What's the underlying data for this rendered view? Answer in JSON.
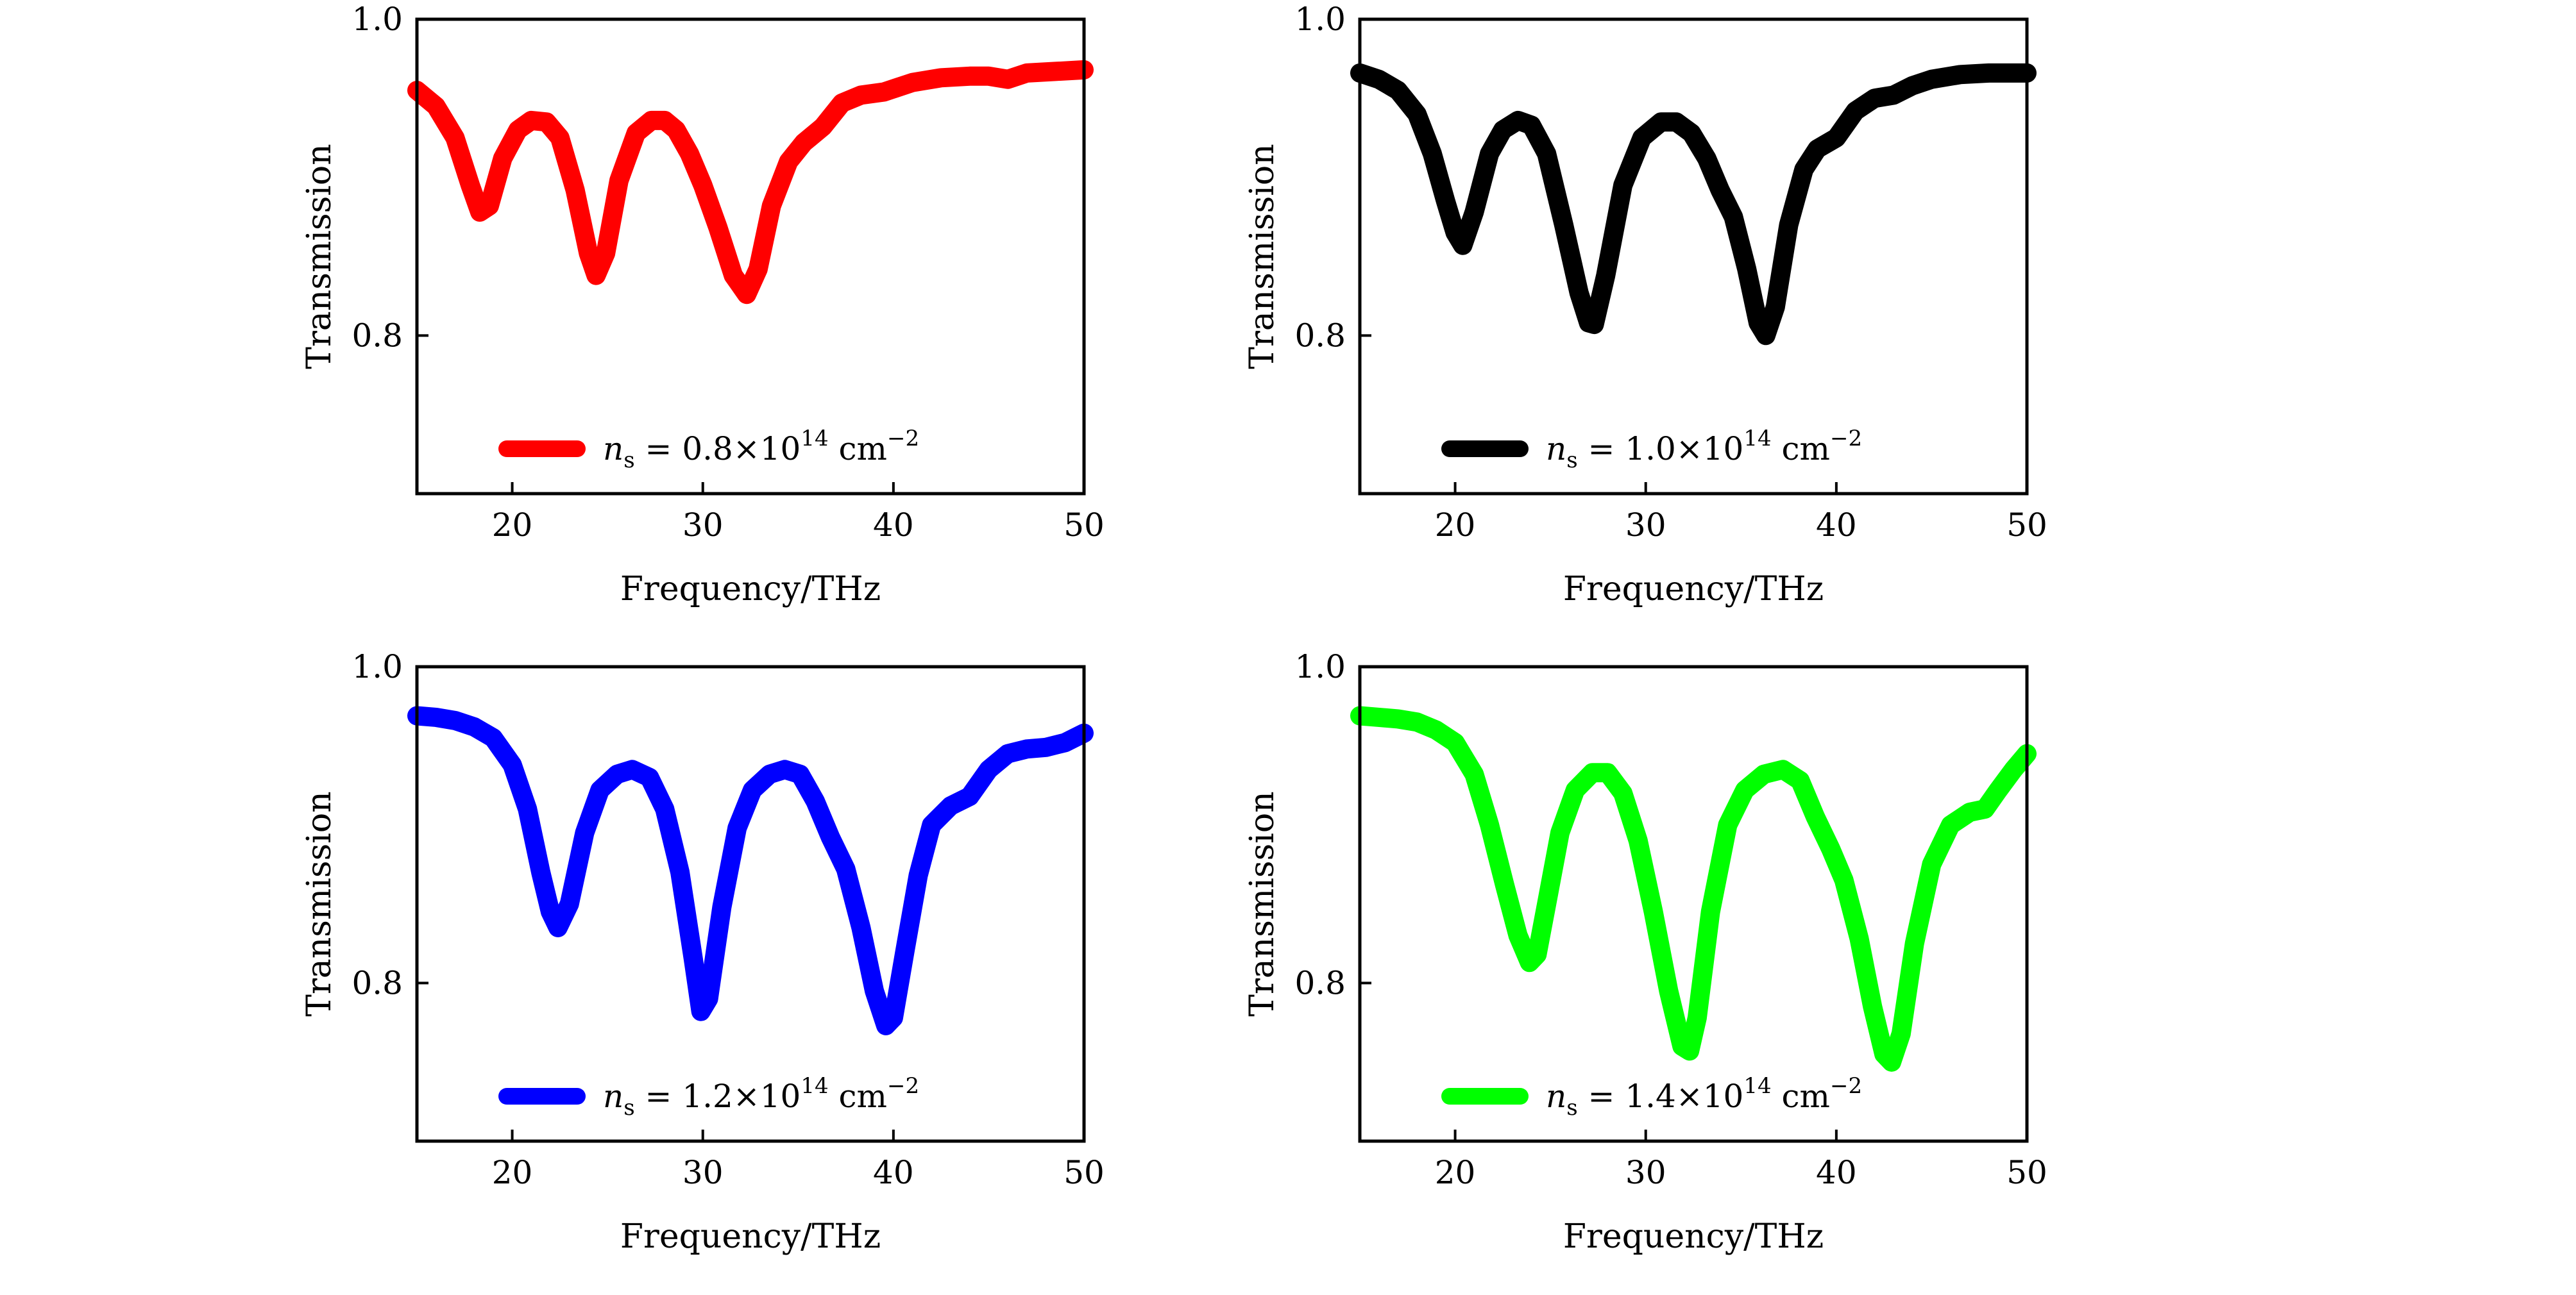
{
  "chart_data": [
    {
      "type": "line",
      "xlabel": "Frequency/THz",
      "ylabel": "Transmission",
      "xlim": [
        15,
        50
      ],
      "ylim": [
        0.7,
        1.0
      ],
      "xticks": [
        "20",
        "30",
        "40",
        "50"
      ],
      "yticks": [
        "0.8",
        "1.0"
      ],
      "legend_placement": "bottom-center",
      "series": [
        {
          "name": "n_s = 0.8×10^14 cm^-2",
          "legend": {
            "symbol": "n",
            "sub": "s",
            "eq": " = 0.8×10",
            "sup": "14",
            "unit": " cm",
            "unitsup": "−2"
          },
          "color": "#ff0000",
          "x": [
            15,
            16,
            17,
            17.8,
            18.3,
            18.8,
            19.5,
            20.3,
            21,
            21.8,
            22.5,
            23.3,
            24,
            24.4,
            24.9,
            25.6,
            26.5,
            27.3,
            28,
            28.6,
            29.3,
            30,
            30.8,
            31.6,
            32.3,
            32.9,
            33.6,
            34.5,
            35.3,
            36.3,
            37.3,
            38.3,
            39.5,
            41,
            42.5,
            44,
            45,
            46,
            47,
            48.5,
            50
          ],
          "y": [
            0.955,
            0.945,
            0.925,
            0.895,
            0.878,
            0.882,
            0.912,
            0.93,
            0.936,
            0.935,
            0.925,
            0.892,
            0.852,
            0.838,
            0.852,
            0.898,
            0.928,
            0.936,
            0.936,
            0.93,
            0.915,
            0.895,
            0.868,
            0.838,
            0.826,
            0.842,
            0.882,
            0.91,
            0.922,
            0.932,
            0.947,
            0.952,
            0.954,
            0.96,
            0.963,
            0.964,
            0.964,
            0.962,
            0.966,
            0.967,
            0.968
          ]
        },
        {
          "name": "n_s = 1.0×10^14 cm^-2",
          "legend": {
            "symbol": "n",
            "sub": "s",
            "eq": " = 1.0×10",
            "sup": "14",
            "unit": " cm",
            "unitsup": "−2"
          },
          "color": "#000000",
          "x": [
            15,
            16,
            17,
            18,
            18.8,
            19.5,
            20,
            20.4,
            21,
            21.8,
            22.5,
            23.3,
            24,
            24.8,
            25.7,
            26.5,
            27,
            27.3,
            27.9,
            28.8,
            29.8,
            30.8,
            31.6,
            32.4,
            33.2,
            33.9,
            34.6,
            35.3,
            35.9,
            36.3,
            36.8,
            37.5,
            38.3,
            39,
            40,
            41,
            42,
            43,
            44,
            45,
            46.5,
            48,
            50
          ],
          "y": [
            0.966,
            0.962,
            0.955,
            0.94,
            0.915,
            0.885,
            0.865,
            0.857,
            0.878,
            0.915,
            0.93,
            0.936,
            0.933,
            0.915,
            0.87,
            0.827,
            0.808,
            0.807,
            0.838,
            0.895,
            0.925,
            0.935,
            0.935,
            0.928,
            0.912,
            0.892,
            0.875,
            0.842,
            0.808,
            0.8,
            0.818,
            0.87,
            0.905,
            0.918,
            0.925,
            0.942,
            0.95,
            0.952,
            0.958,
            0.962,
            0.965,
            0.966,
            0.966
          ]
        },
        {
          "name": "n_s = 1.2×10^14 cm^-2",
          "legend": {
            "symbol": "n",
            "sub": "s",
            "eq": " = 1.2×10",
            "sup": "14",
            "unit": " cm",
            "unitsup": "−2"
          },
          "color": "#0000ff",
          "x": [
            15,
            16,
            17,
            18,
            19,
            20,
            20.8,
            21.5,
            22,
            22.4,
            23,
            23.8,
            24.6,
            25.5,
            26.3,
            27.2,
            28,
            28.8,
            29.5,
            29.9,
            30.3,
            31,
            31.8,
            32.6,
            33.5,
            34.3,
            35.1,
            35.9,
            36.7,
            37.5,
            38.3,
            39,
            39.6,
            40,
            40.6,
            41.3,
            42,
            43,
            44,
            45,
            46,
            47,
            48,
            49,
            50
          ],
          "y": [
            0.969,
            0.968,
            0.966,
            0.962,
            0.955,
            0.938,
            0.91,
            0.87,
            0.845,
            0.835,
            0.85,
            0.895,
            0.922,
            0.932,
            0.935,
            0.93,
            0.91,
            0.87,
            0.815,
            0.782,
            0.79,
            0.848,
            0.898,
            0.922,
            0.932,
            0.935,
            0.932,
            0.915,
            0.892,
            0.872,
            0.835,
            0.795,
            0.773,
            0.778,
            0.82,
            0.868,
            0.9,
            0.912,
            0.918,
            0.935,
            0.945,
            0.948,
            0.949,
            0.952,
            0.958
          ]
        },
        {
          "name": "n_s = 1.4×10^14 cm^-2",
          "legend": {
            "symbol": "n",
            "sub": "s",
            "eq": " = 1.4×10",
            "sup": "14",
            "unit": " cm",
            "unitsup": "−2"
          },
          "color": "#00ff00",
          "x": [
            15,
            16,
            17,
            18,
            19,
            20,
            21,
            21.8,
            22.6,
            23.3,
            23.9,
            24.3,
            24.8,
            25.5,
            26.3,
            27.2,
            28,
            28.8,
            29.6,
            30.4,
            31.2,
            31.9,
            32.3,
            32.7,
            33.4,
            34.3,
            35.2,
            36.2,
            37.2,
            38.1,
            38.9,
            39.7,
            40.4,
            41.2,
            41.9,
            42.5,
            42.9,
            43.4,
            44.1,
            45,
            46,
            47,
            47.8,
            48.5,
            49.3,
            50
          ],
          "y": [
            0.969,
            0.968,
            0.967,
            0.965,
            0.96,
            0.952,
            0.932,
            0.9,
            0.862,
            0.83,
            0.813,
            0.818,
            0.85,
            0.895,
            0.922,
            0.933,
            0.933,
            0.92,
            0.89,
            0.845,
            0.795,
            0.76,
            0.757,
            0.778,
            0.845,
            0.9,
            0.922,
            0.932,
            0.935,
            0.928,
            0.905,
            0.885,
            0.865,
            0.828,
            0.785,
            0.755,
            0.75,
            0.768,
            0.825,
            0.875,
            0.9,
            0.908,
            0.91,
            0.922,
            0.935,
            0.945
          ]
        }
      ]
    }
  ]
}
